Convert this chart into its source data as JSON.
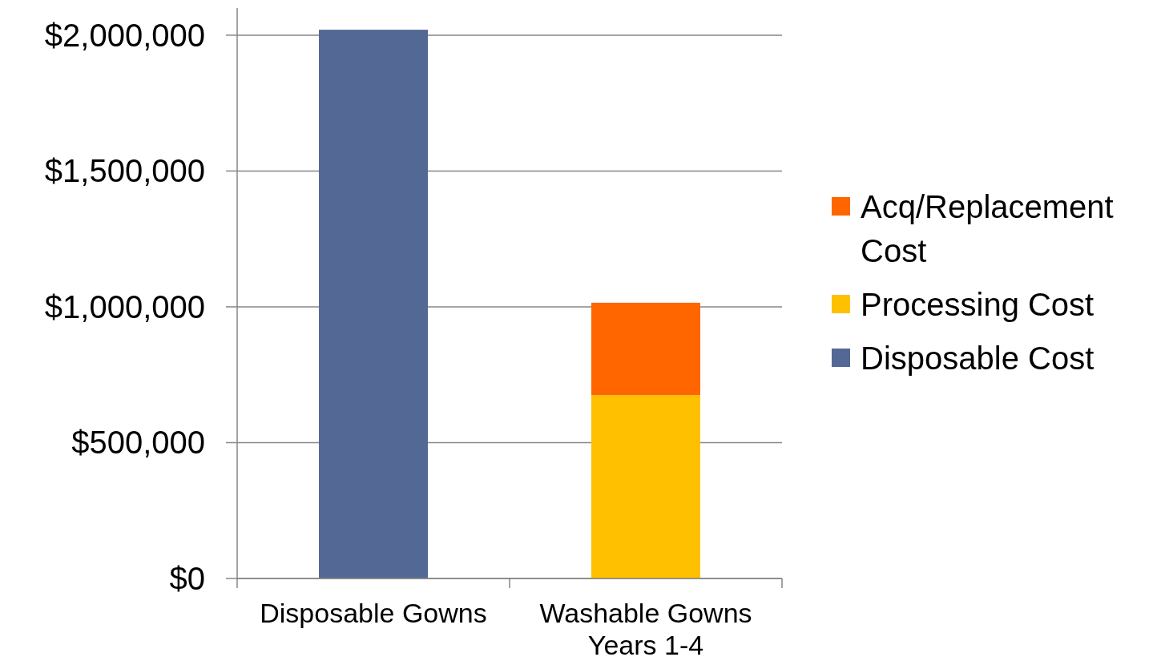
{
  "chart_data": {
    "type": "bar",
    "stacked": true,
    "categories": [
      "Disposable Gowns",
      "Washable Gowns Years 1-4"
    ],
    "series": [
      {
        "name": "Disposable Cost",
        "color": "#536895",
        "values": [
          2020000,
          null
        ]
      },
      {
        "name": "Processing Cost",
        "color": "#ffc000",
        "values": [
          null,
          675000
        ]
      },
      {
        "name": "Acq/Replacement Cost",
        "color": "#ff6600",
        "values": [
          null,
          340000
        ]
      }
    ],
    "ylim": [
      0,
      2100000
    ],
    "yticks": [
      {
        "value": 0,
        "label": "$0"
      },
      {
        "value": 500000,
        "label": "$500,000"
      },
      {
        "value": 1000000,
        "label": "$1,000,000"
      },
      {
        "value": 1500000,
        "label": "$1,500,000"
      },
      {
        "value": 2000000,
        "label": "$2,000,000"
      }
    ],
    "grid": "y",
    "legend": "right"
  }
}
